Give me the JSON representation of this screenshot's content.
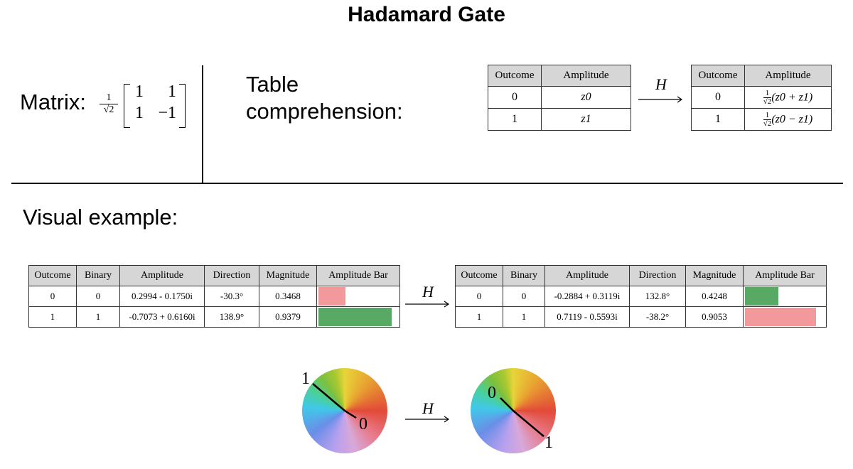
{
  "title": "Hadamard Gate",
  "matrix": {
    "label": "Matrix:",
    "prefactor_num": "1",
    "prefactor_den": "√2",
    "cells": [
      "1",
      "1",
      "1",
      "−1"
    ]
  },
  "table_comprehension": {
    "label_line1": "Table",
    "label_line2": "comprehension:",
    "gate_label": "H",
    "before": {
      "headers": [
        "Outcome",
        "Amplitude"
      ],
      "rows": [
        [
          "0",
          "z0"
        ],
        [
          "1",
          "z1"
        ]
      ]
    },
    "after": {
      "headers": [
        "Outcome",
        "Amplitude"
      ],
      "rows": [
        [
          "0",
          "(z0 + z1)"
        ],
        [
          "1",
          "(z0 − z1)"
        ]
      ],
      "prefactor_num": "1",
      "prefactor_den": "√2"
    }
  },
  "visual_example": {
    "label": "Visual example:",
    "gate_label": "H",
    "headers": [
      "Outcome",
      "Binary",
      "Amplitude",
      "Direction",
      "Magnitude",
      "Amplitude Bar"
    ],
    "before": [
      {
        "outcome": "0",
        "binary": "0",
        "amplitude": "0.2994 - 0.1750i",
        "direction": "-30.3°",
        "magnitude": "0.3468",
        "bar_value": 0.3468,
        "bar_color": "#f29a9b"
      },
      {
        "outcome": "1",
        "binary": "1",
        "amplitude": "-0.7073 + 0.6160i",
        "direction": "138.9°",
        "magnitude": "0.9379",
        "bar_value": 0.9379,
        "bar_color": "#58a964"
      }
    ],
    "after": [
      {
        "outcome": "0",
        "binary": "0",
        "amplitude": "-0.2884 + 0.3119i",
        "direction": "132.8°",
        "magnitude": "0.4248",
        "bar_value": 0.4248,
        "bar_color": "#58a964"
      },
      {
        "outcome": "1",
        "binary": "1",
        "amplitude": "0.7119 - 0.5593i",
        "direction": "-38.2°",
        "magnitude": "0.9053",
        "bar_value": 0.9053,
        "bar_color": "#f29a9b"
      }
    ]
  },
  "wheels": {
    "gate_label": "H",
    "before_labels": [
      "1",
      "0"
    ],
    "after_labels": [
      "0",
      "1"
    ]
  }
}
